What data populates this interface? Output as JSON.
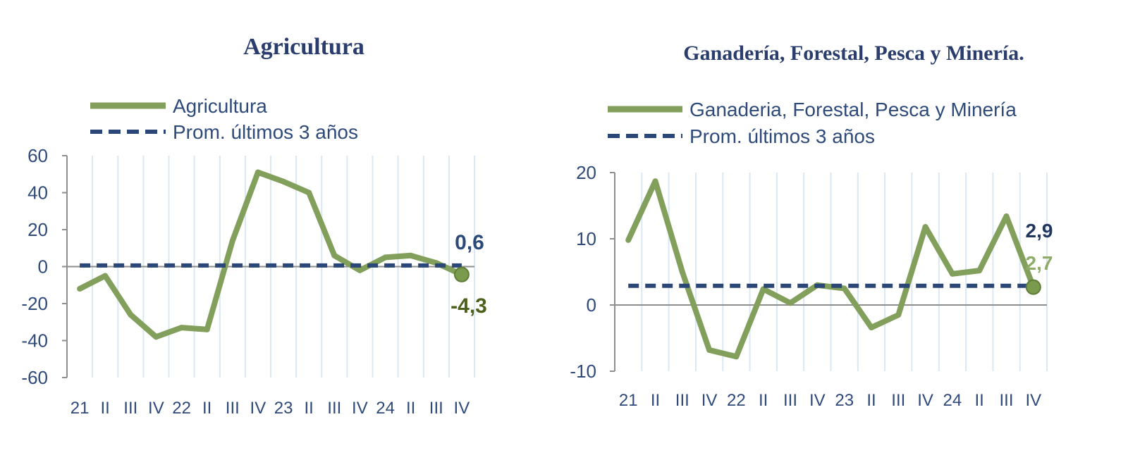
{
  "chart_data": [
    {
      "type": "line",
      "title": "Agricultura",
      "categories": [
        "21",
        "II",
        "III",
        "IV",
        "22",
        "II",
        "III",
        "IV",
        "23",
        "II",
        "III",
        "IV",
        "24",
        "II",
        "III",
        "IV"
      ],
      "series": [
        {
          "name": "Agricultura",
          "color": "#82a05c",
          "line_style": "solid",
          "values": [
            -12,
            -5,
            -26,
            -38,
            -33,
            -34,
            14,
            51,
            46,
            40,
            6,
            -2,
            5,
            6,
            2,
            -4.3
          ]
        },
        {
          "name": "Prom. últimos 3 años",
          "color": "#2b4778",
          "line_style": "dashed",
          "values": [
            0.6,
            0.6,
            0.6,
            0.6,
            0.6,
            0.6,
            0.6,
            0.6,
            0.6,
            0.6,
            0.6,
            0.6,
            0.6,
            0.6,
            0.6,
            0.6
          ]
        }
      ],
      "ylim": [
        -60,
        60
      ],
      "yticks": [
        60,
        40,
        20,
        0,
        -20,
        -40,
        -60
      ],
      "ytick_labels": [
        "60",
        "40",
        "20",
        "0",
        "-20",
        "-40",
        "-60"
      ],
      "annotations": [
        {
          "text": "0,6",
          "color": "#2b4a7a"
        },
        {
          "text": "-4,3",
          "color": "#4e611c"
        }
      ],
      "end_marker_color": "#7a9a4e",
      "grid": "vertical",
      "legend": "top-left"
    },
    {
      "type": "line",
      "title": "Ganadería, Forestal, Pesca y Minería.",
      "categories": [
        "21",
        "II",
        "III",
        "IV",
        "22",
        "II",
        "III",
        "IV",
        "23",
        "II",
        "III",
        "IV",
        "24",
        "II",
        "III",
        "IV"
      ],
      "series": [
        {
          "name": "Ganaderia, Forestal, Pesca y Minería",
          "color": "#82a05c",
          "line_style": "solid",
          "values": [
            9.8,
            18.7,
            5,
            -6.8,
            -7.8,
            2.4,
            0.3,
            3.0,
            2.5,
            -3.4,
            -1.5,
            11.8,
            4.7,
            5.2,
            13.4,
            2.7
          ]
        },
        {
          "name": "Prom. últimos 3 años",
          "color": "#2b4778",
          "line_style": "dashed",
          "values": [
            2.9,
            2.9,
            2.9,
            2.9,
            2.9,
            2.9,
            2.9,
            2.9,
            2.9,
            2.9,
            2.9,
            2.9,
            2.9,
            2.9,
            2.9,
            2.9
          ]
        }
      ],
      "ylim": [
        -10,
        20
      ],
      "yticks": [
        20,
        10,
        0,
        -10
      ],
      "ytick_labels": [
        "20",
        "10",
        "0",
        "-10"
      ],
      "annotations": [
        {
          "text": "2,9",
          "color": "#20365f"
        },
        {
          "text": "2,7",
          "color": "#8eac68"
        }
      ],
      "end_marker_color": "#7a9a4e",
      "grid": "vertical",
      "legend": "top-left"
    }
  ]
}
